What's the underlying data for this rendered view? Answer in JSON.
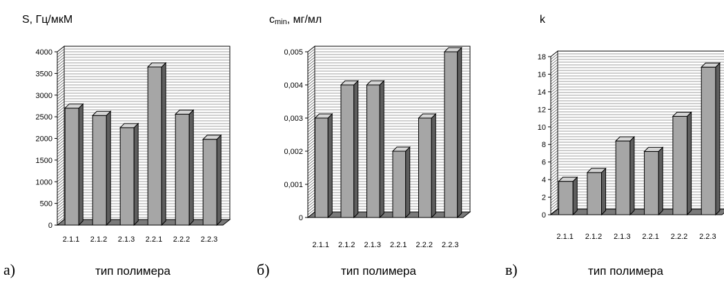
{
  "colors": {
    "bar_face": "#a6a6a6",
    "bar_side": "#5e5e5e",
    "bar_top": "#d4d4d4",
    "wall": "#ffffff",
    "floor": "#7a7a7a",
    "grid": "#404040"
  },
  "chart_data": [
    {
      "type": "bar",
      "panel_letter": "а)",
      "ylabel": "S, Гц/мкМ",
      "xlabel": "тип полимера",
      "categories": [
        "2.1.1",
        "2.1.2",
        "2.1.3",
        "2.2.1",
        "2.2.2",
        "2.2.3"
      ],
      "values": [
        2700,
        2530,
        2250,
        3650,
        2560,
        1980
      ],
      "ylim": [
        0,
        4000
      ],
      "yticks": [
        "0",
        "500",
        "1000",
        "1500",
        "2000",
        "2500",
        "3000",
        "3500",
        "4000"
      ],
      "grid": true
    },
    {
      "type": "bar",
      "panel_letter": "б)",
      "ylabel_main": "c",
      "ylabel_sub": "min",
      "ylabel_rest": ", мг/мл",
      "xlabel": "тип полимера",
      "categories": [
        "2.1.1",
        "2.1.2",
        "2.1.3",
        "2.2.1",
        "2.2.2",
        "2.2.3"
      ],
      "values": [
        0.003,
        0.004,
        0.004,
        0.002,
        0.003,
        0.005
      ],
      "ylim": [
        0,
        0.005
      ],
      "yticks": [
        "0",
        "0,001",
        "0,002",
        "0,003",
        "0,004",
        "0,005"
      ],
      "grid": true
    },
    {
      "type": "bar",
      "panel_letter": "в)",
      "ylabel": "k",
      "xlabel": "тип полимера",
      "categories": [
        "2.1.1",
        "2.1.2",
        "2.1.3",
        "2.2.1",
        "2.2.2",
        "2.2.3"
      ],
      "values": [
        3.8,
        4.8,
        8.4,
        7.2,
        11.2,
        16.8
      ],
      "ylim": [
        0,
        18
      ],
      "yticks": [
        "0",
        "2",
        "4",
        "6",
        "8",
        "10",
        "12",
        "14",
        "16",
        "18"
      ],
      "grid": true
    }
  ]
}
